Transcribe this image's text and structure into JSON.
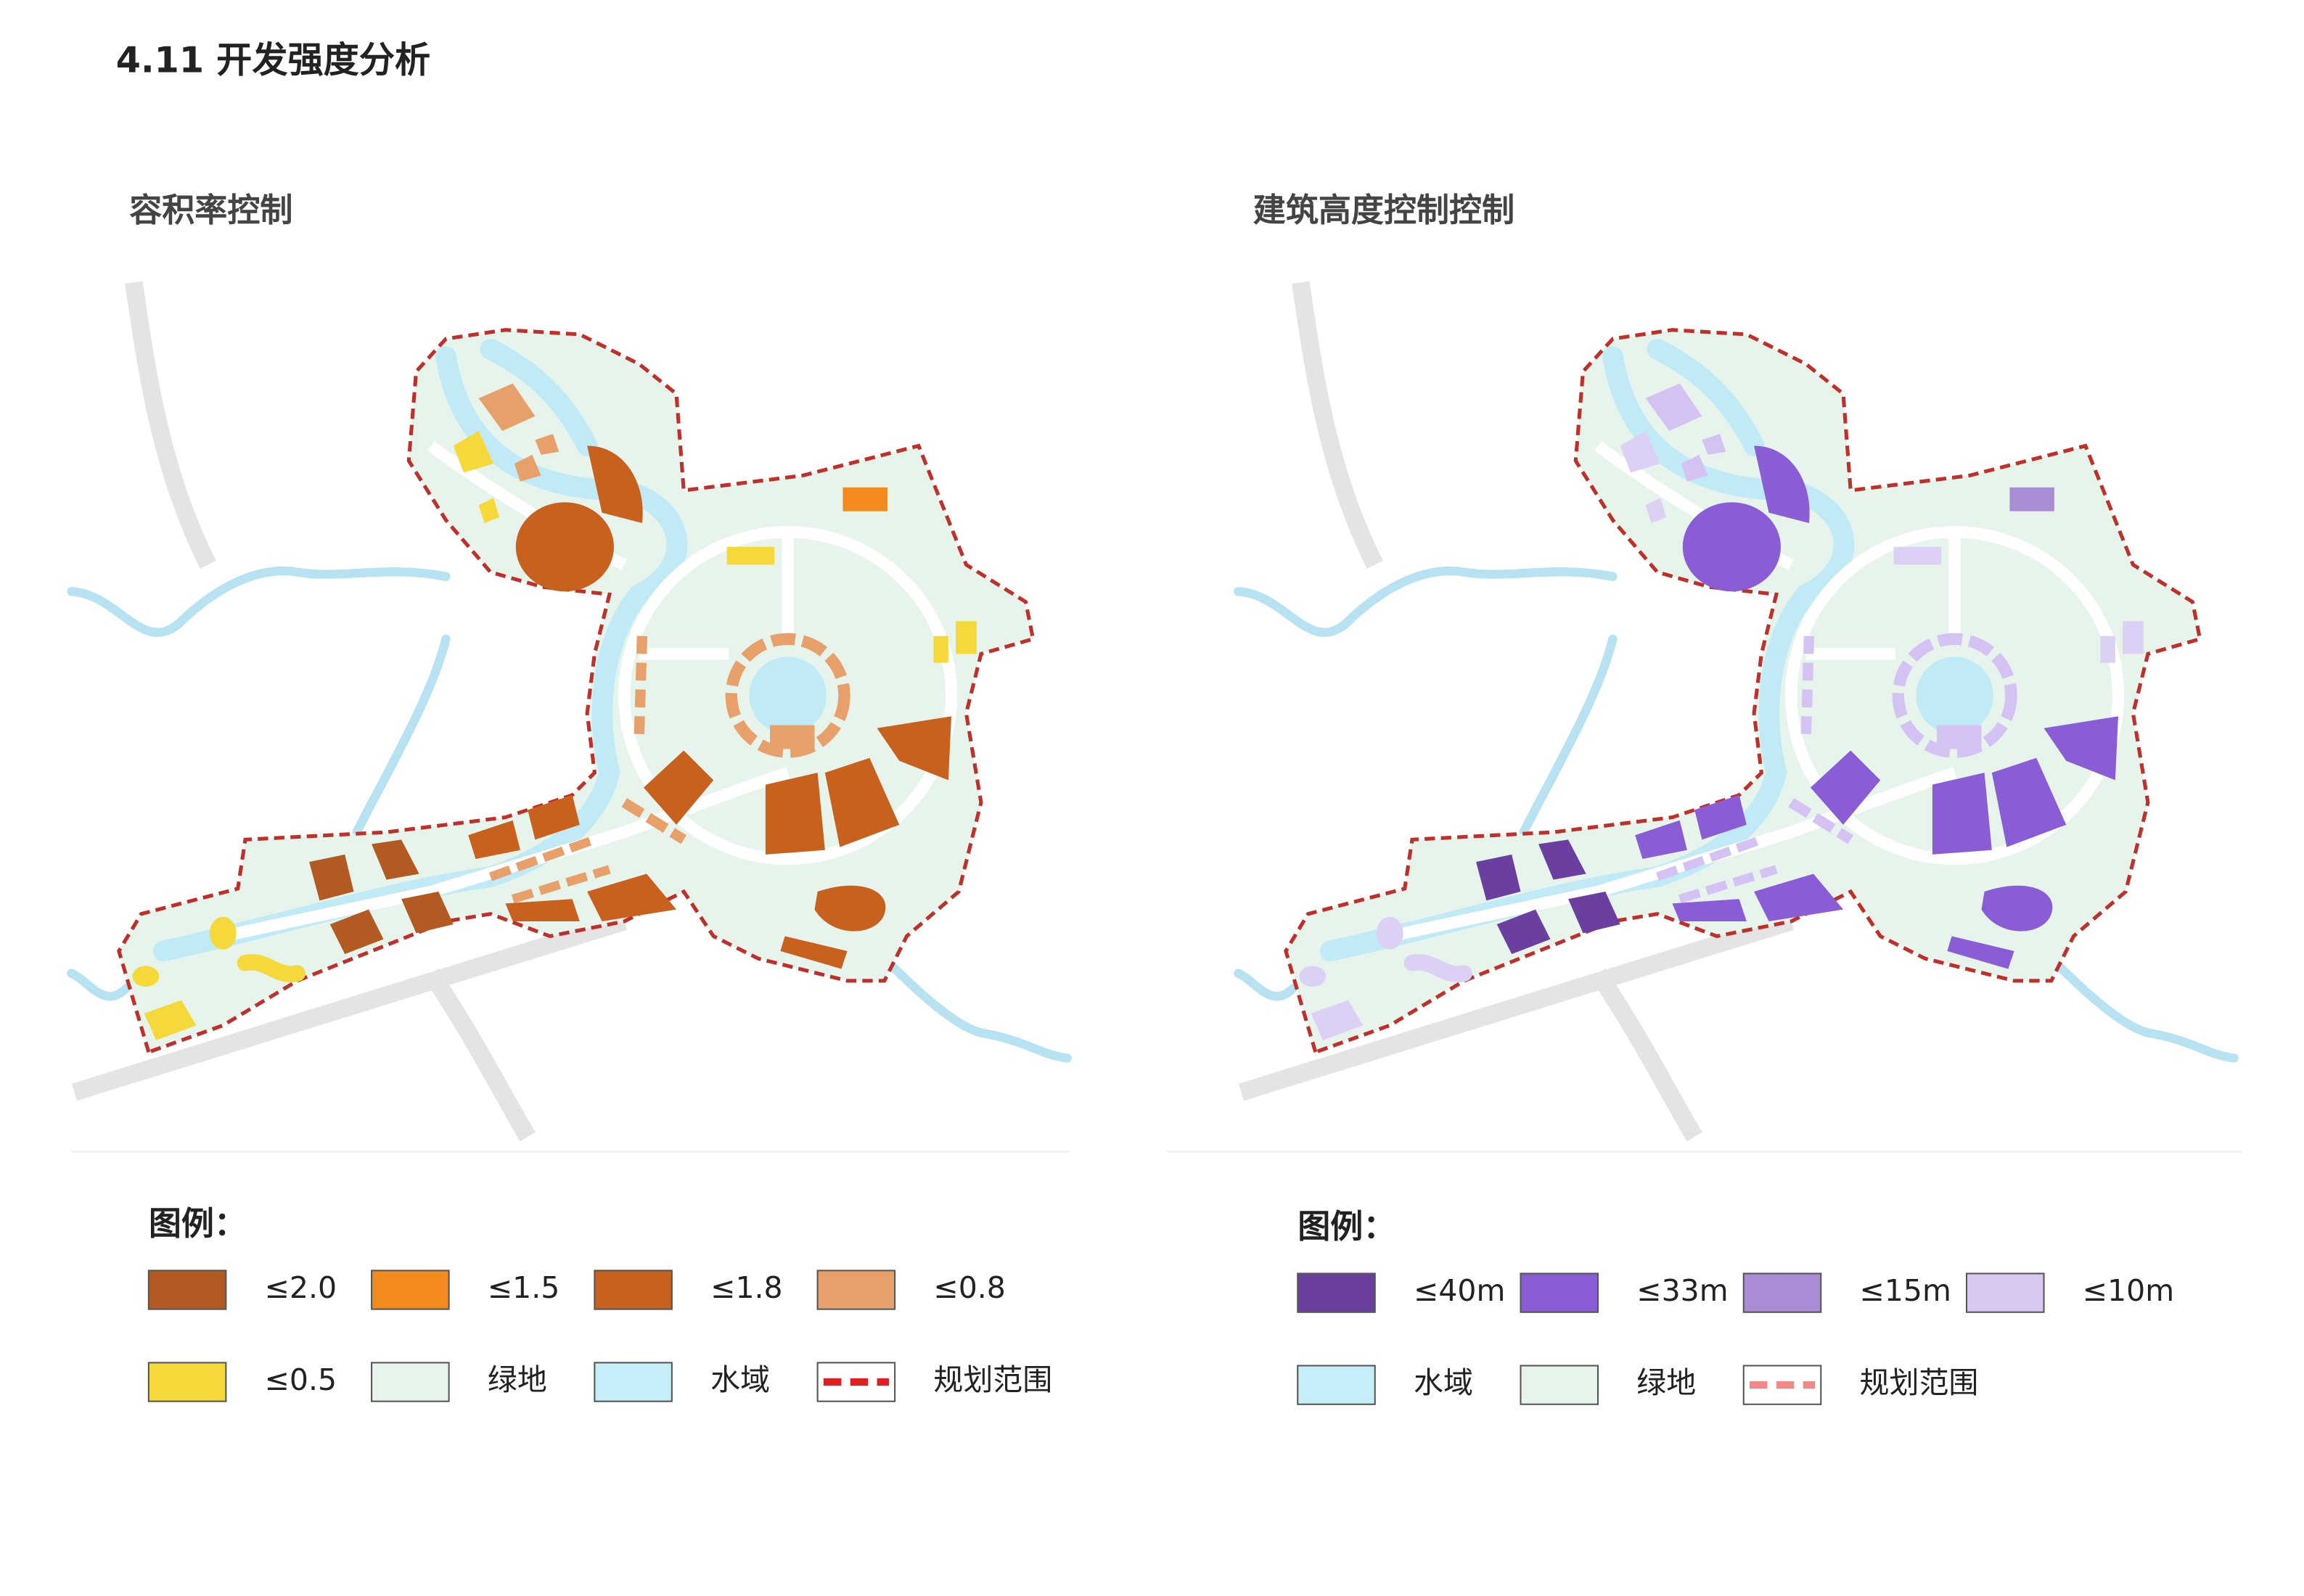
{
  "title": "4.11 开发强度分析",
  "panels": [
    {
      "title": "容积率控制",
      "legend_title": "图例：",
      "legend": [
        {
          "label": "≤2.0",
          "color": "#b35a23"
        },
        {
          "label": "≤1.5",
          "color": "#f28a1e"
        },
        {
          "label": "≤1.8",
          "color": "#c8601e"
        },
        {
          "label": "≤0.8",
          "color": "#e8a06a"
        },
        {
          "label": "≤0.5",
          "color": "#f5d83a"
        },
        {
          "label": "绿地",
          "color": "#e6f4ec"
        },
        {
          "label": "水域",
          "color": "#c6eef8"
        },
        {
          "label": "规划范围",
          "color": "#e02020",
          "kind": "dashed"
        }
      ]
    },
    {
      "title": "建筑高度控制控制",
      "legend_title": "图例：",
      "legend": [
        {
          "label": "≤40m",
          "color": "#6a3fa0"
        },
        {
          "label": "≤33m",
          "color": "#8a5cd6"
        },
        {
          "label": "≤15m",
          "color": "#a88cd6"
        },
        {
          "label": "≤10m",
          "color": "#d9c8f2"
        },
        {
          "label": "水域",
          "color": "#c6eef8"
        },
        {
          "label": "绿地",
          "color": "#e6f4ec"
        },
        {
          "label": "规划范围",
          "color": "#f08a8a",
          "kind": "dashed"
        }
      ]
    }
  ]
}
